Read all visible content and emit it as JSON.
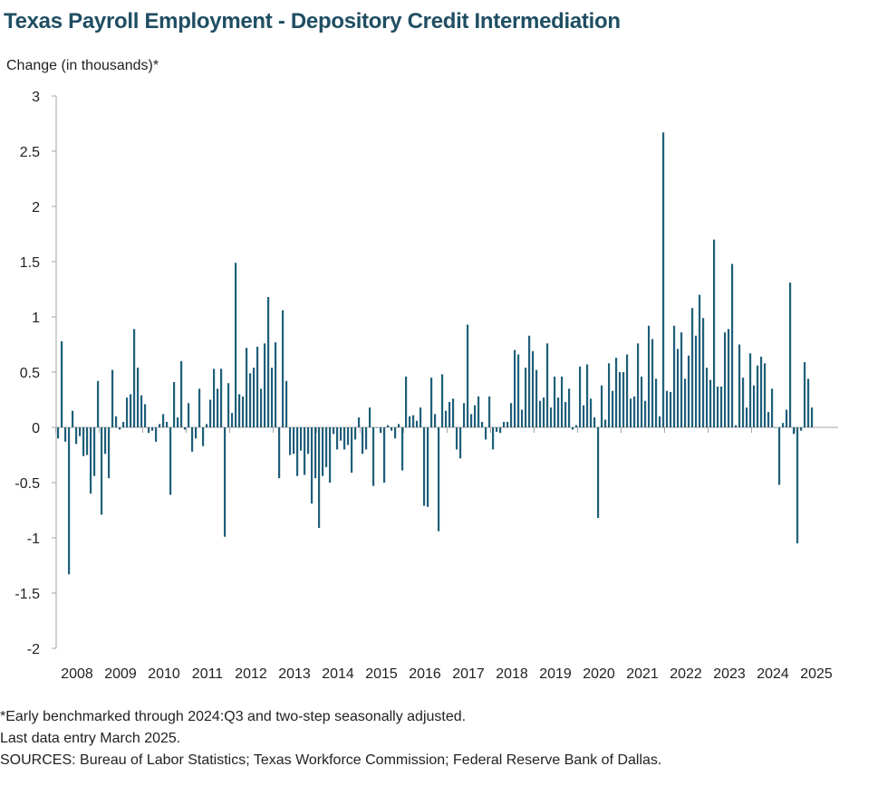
{
  "chart_data": {
    "type": "bar",
    "title": "Texas Payroll Employment - Depository Credit Intermediation",
    "ylabel": "Change (in thousands)*",
    "xlabel": "",
    "ylim": [
      -2,
      3
    ],
    "yticks": [
      "3",
      "2.5",
      "2",
      "1.5",
      "1",
      "0.5",
      "0",
      "-0.5",
      "-1",
      "-1.5",
      "-2"
    ],
    "ytick_values": [
      3,
      2.5,
      2,
      1.5,
      1,
      0.5,
      0,
      -0.5,
      -1,
      -1.5,
      -2
    ],
    "x_tick_labels": [
      "2008",
      "2009",
      "2010",
      "2011",
      "2012",
      "2013",
      "2014",
      "2015",
      "2016",
      "2017",
      "2018",
      "2019",
      "2020",
      "2021",
      "2022",
      "2023",
      "2024",
      "2025"
    ],
    "start": "2008-01",
    "end": "2025-03",
    "frequency": "monthly",
    "series": [
      {
        "color": "#1f5f7a",
        "values": [
          -0.1,
          0.78,
          -0.13,
          -1.33,
          0.15,
          -0.15,
          -0.08,
          -0.26,
          -0.25,
          -0.6,
          -0.44,
          0.42,
          -0.79,
          -0.24,
          -0.46,
          0.52,
          0.1,
          -0.02,
          0.05,
          0.27,
          0.3,
          0.89,
          0.54,
          0.29,
          0.21,
          -0.05,
          -0.03,
          -0.13,
          0.03,
          0.12,
          0.05,
          -0.61,
          0.41,
          0.09,
          0.6,
          -0.02,
          0.22,
          -0.22,
          -0.1,
          0.35,
          -0.17,
          0.03,
          0.25,
          0.53,
          0.35,
          0.53,
          -0.99,
          0.4,
          0.13,
          1.49,
          0.3,
          0.28,
          0.72,
          0.49,
          0.54,
          0.73,
          0.35,
          0.76,
          1.18,
          0.54,
          0.77,
          -0.46,
          1.06,
          0.42,
          -0.25,
          -0.24,
          -0.44,
          -0.21,
          -0.43,
          -0.24,
          -0.69,
          -0.46,
          -0.91,
          -0.44,
          -0.36,
          -0.5,
          -0.06,
          -0.2,
          -0.12,
          -0.2,
          -0.16,
          -0.41,
          -0.11,
          0.09,
          -0.24,
          -0.2,
          0.18,
          -0.53,
          0.0,
          -0.05,
          -0.5,
          0.02,
          -0.03,
          -0.1,
          0.03,
          -0.39,
          0.46,
          0.1,
          0.11,
          0.06,
          0.18,
          -0.71,
          -0.72,
          0.45,
          0.12,
          -0.94,
          0.48,
          0.15,
          0.23,
          0.26,
          -0.2,
          -0.28,
          0.22,
          0.93,
          0.12,
          0.2,
          0.28,
          0.05,
          -0.11,
          0.28,
          -0.2,
          -0.04,
          -0.05,
          0.05,
          0.05,
          0.22,
          0.7,
          0.66,
          0.16,
          0.54,
          0.83,
          0.69,
          0.52,
          0.24,
          0.27,
          0.76,
          0.18,
          0.46,
          0.27,
          0.46,
          0.23,
          0.35,
          -0.02,
          0.02,
          0.55,
          0.2,
          0.57,
          0.26,
          0.09,
          -0.82,
          0.38,
          0.07,
          0.58,
          0.33,
          0.63,
          0.5,
          0.5,
          0.66,
          0.26,
          0.28,
          0.76,
          0.46,
          0.24,
          0.92,
          0.8,
          0.44,
          0.1,
          2.67,
          0.33,
          0.32,
          0.92,
          0.71,
          0.86,
          0.44,
          0.65,
          1.08,
          0.83,
          1.2,
          0.99,
          0.54,
          0.43,
          1.7,
          0.37,
          0.37,
          0.86,
          0.89,
          1.48,
          0.02,
          0.75,
          0.45,
          0.18,
          0.67,
          0.38,
          0.56,
          0.64,
          0.58,
          0.14,
          0.35,
          0.0,
          -0.52,
          0.04,
          0.16,
          1.31,
          -0.06,
          -1.05,
          -0.03,
          0.59,
          0.44,
          0.18
        ]
      }
    ]
  },
  "footnotes": {
    "note": "*Early benchmarked through 2024:Q3 and two-step seasonally adjusted.",
    "last_entry": "Last data entry March 2025.",
    "sources": "SOURCES: Bureau of Labor Statistics; Texas Workforce Commission; Federal Reserve Bank of Dallas."
  }
}
